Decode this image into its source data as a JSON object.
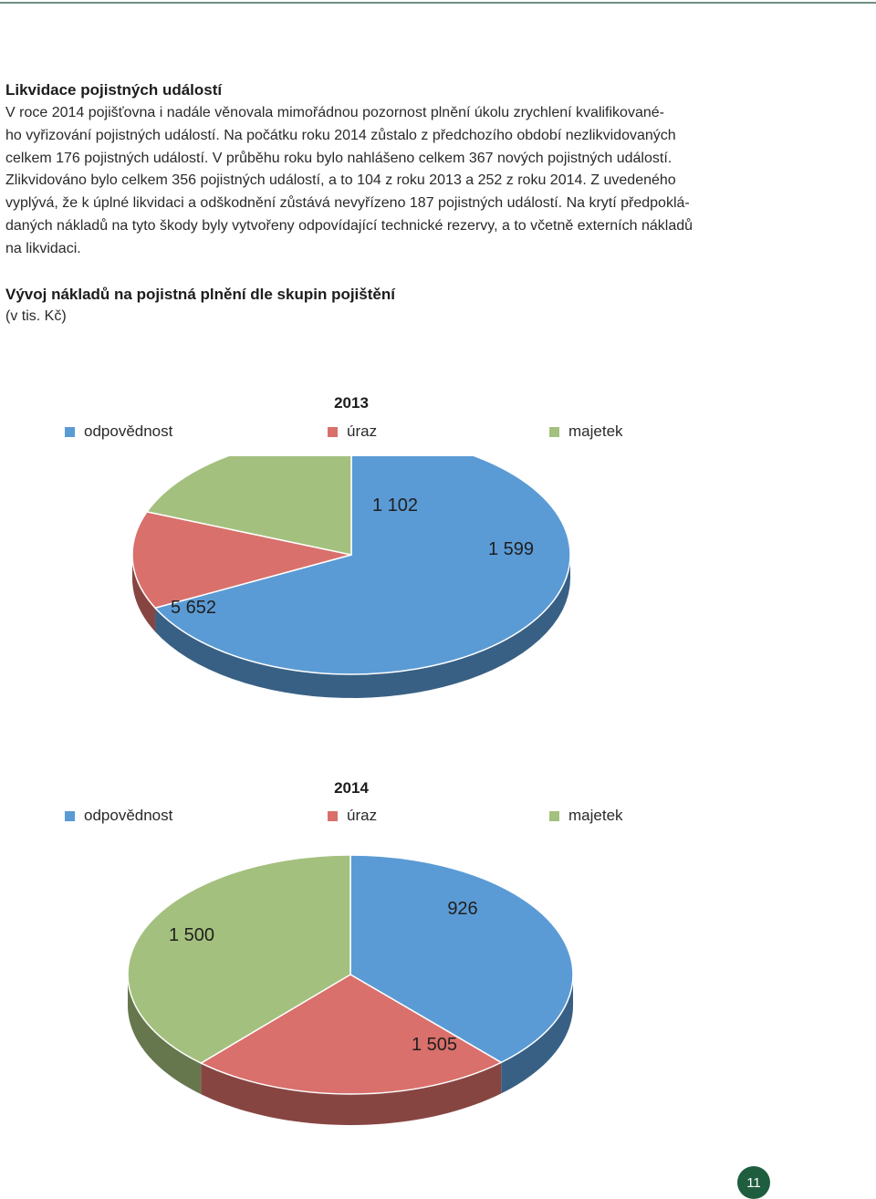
{
  "section1": {
    "heading": "Likvidace pojistných událostí",
    "lines": [
      "V roce 2014 pojišťovna i nadále věnovala mimořádnou pozornost plnění úkolu zrychlení kvalifikované-",
      "ho vyřizování pojistných událostí. Na počátku roku 2014 zůstalo z předchozího období nezlikvidovaných",
      "celkem 176 pojistných událostí. V průběhu roku bylo nahlášeno celkem 367 nových pojistných událostí.",
      "Zlikvidováno bylo celkem 356 pojistných událostí, a to 104 z roku 2013 a 252 z roku 2014. Z uvedeného",
      "vyplývá, že k úplné likvidaci a odškodnění zůstává nevyřízeno 187 pojistných událostí. Na krytí předpoklá-",
      "daných nákladů na tyto škody byly vytvořeny odpovídající technické rezervy, a to včetně externích nákladů",
      "na likvidaci."
    ]
  },
  "section2": {
    "heading": "Vývoj nákladů na pojistná plnění dle skupin pojištění",
    "unit": "(v tis. Kč)"
  },
  "colors": {
    "odpovednost": "#5b9bd5",
    "uraz": "#d9706b",
    "majetek": "#a4c07e",
    "page_badge": "#1f5d3f"
  },
  "chart_data": [
    {
      "type": "pie",
      "title": "2013",
      "legend_placement": "top",
      "categories": [
        "odpovědnost",
        "úraz",
        "majetek"
      ],
      "values": [
        5652,
        1102,
        1599
      ],
      "value_labels": [
        "5 652",
        "1 102",
        "1 599"
      ]
    },
    {
      "type": "pie",
      "title": "2014",
      "legend_placement": "top",
      "categories": [
        "odpovědnost",
        "úraz",
        "majetek"
      ],
      "values": [
        1500,
        926,
        1505
      ],
      "value_labels": [
        "1 500",
        "926",
        "1 505"
      ]
    }
  ],
  "footer": {
    "page_number": "11"
  }
}
